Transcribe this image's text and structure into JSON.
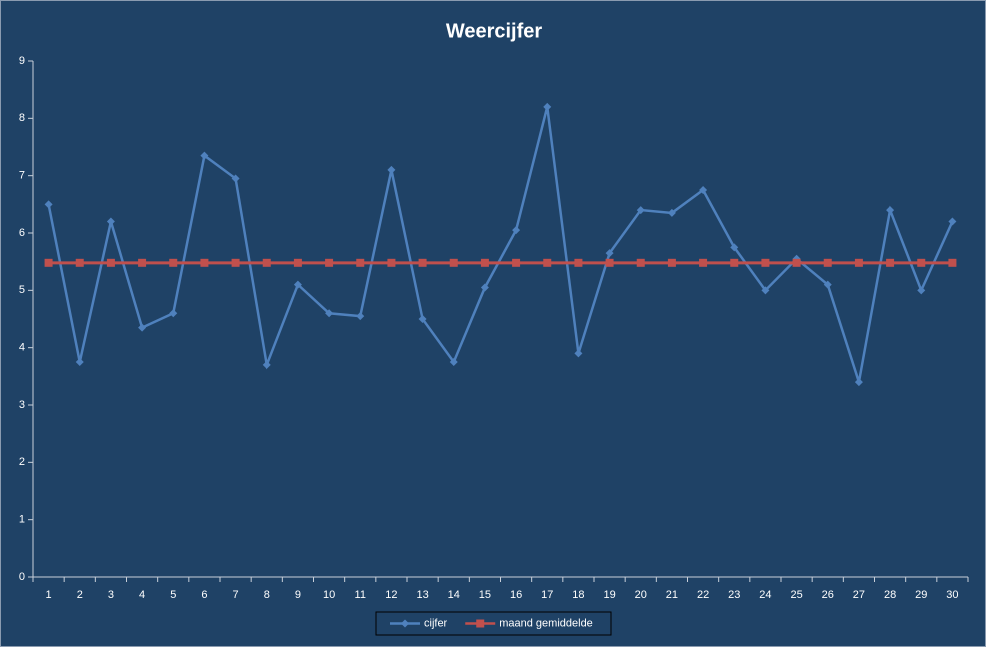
{
  "chart_data": {
    "type": "line",
    "title": "Weercijfer",
    "categories": [
      1,
      2,
      3,
      4,
      5,
      6,
      7,
      8,
      9,
      10,
      11,
      12,
      13,
      14,
      15,
      16,
      17,
      18,
      19,
      20,
      21,
      22,
      23,
      24,
      25,
      26,
      27,
      28,
      29,
      30
    ],
    "series": [
      {
        "name": "cijfer",
        "color": "#4f81bd",
        "marker": "diamond",
        "values": [
          6.5,
          3.75,
          6.2,
          4.35,
          4.6,
          7.35,
          6.95,
          3.7,
          5.1,
          4.6,
          4.55,
          7.1,
          4.5,
          3.75,
          5.05,
          6.05,
          8.2,
          3.9,
          5.65,
          6.4,
          6.35,
          6.75,
          5.75,
          5,
          5.55,
          5.1,
          3.4,
          6.4,
          5,
          6.2
        ]
      },
      {
        "name": "maand gemiddelde",
        "color": "#c0504d",
        "marker": "square",
        "values": [
          5.48,
          5.48,
          5.48,
          5.48,
          5.48,
          5.48,
          5.48,
          5.48,
          5.48,
          5.48,
          5.48,
          5.48,
          5.48,
          5.48,
          5.48,
          5.48,
          5.48,
          5.48,
          5.48,
          5.48,
          5.48,
          5.48,
          5.48,
          5.48,
          5.48,
          5.48,
          5.48,
          5.48,
          5.48,
          5.48
        ]
      }
    ],
    "ylim": [
      0,
      9
    ],
    "yticks": [
      0,
      1,
      2,
      3,
      4,
      5,
      6,
      7,
      8,
      9
    ],
    "grid": false,
    "legend": "bottom"
  }
}
